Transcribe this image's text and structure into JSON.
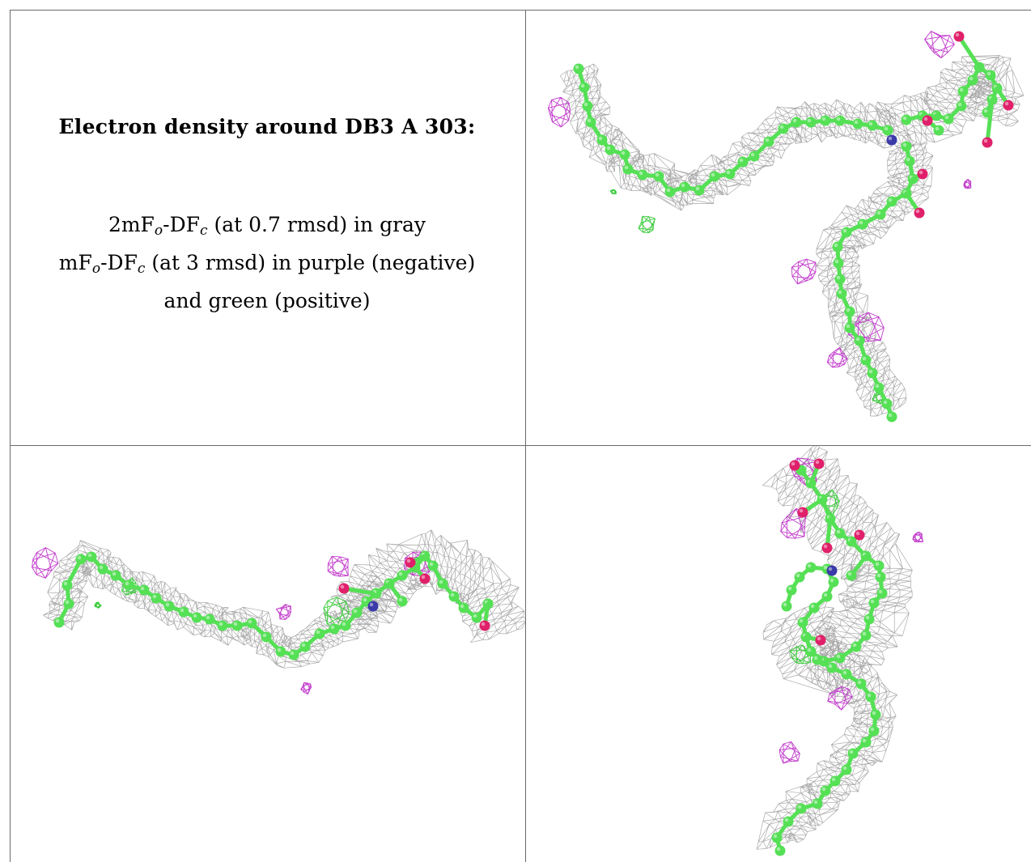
{
  "caption": {
    "title": "Electron density around DB3 A 303:",
    "lines": [
      {
        "a": "2mF",
        "sub1": "o",
        "b": "-DF",
        "sub2": "c",
        "c": " (at 0.7 rmsd) in gray"
      },
      {
        "a": "mF",
        "sub1": "o",
        "b": "-DF",
        "sub2": "c",
        "c": " (at 3 rmsd) in purple (negative)"
      },
      {
        "a": "and green (positive)"
      }
    ]
  },
  "colors": {
    "carbon": "#55e055",
    "carbon_dark": "#36b836",
    "oxygen": "#e0206a",
    "nitrogen": "#3a3aa8",
    "density_2fofc": "#9a9a9a",
    "density_negative": "#c23ccc",
    "density_positive": "#3ccc3c",
    "grid_lines": "#6b6b6b"
  },
  "panels": [
    {
      "id": "view-top-right",
      "description_icon": "molecule-density-view-1"
    },
    {
      "id": "view-bottom-left",
      "description_icon": "molecule-density-view-2"
    },
    {
      "id": "view-bottom-right",
      "description_icon": "molecule-density-view-3"
    }
  ]
}
